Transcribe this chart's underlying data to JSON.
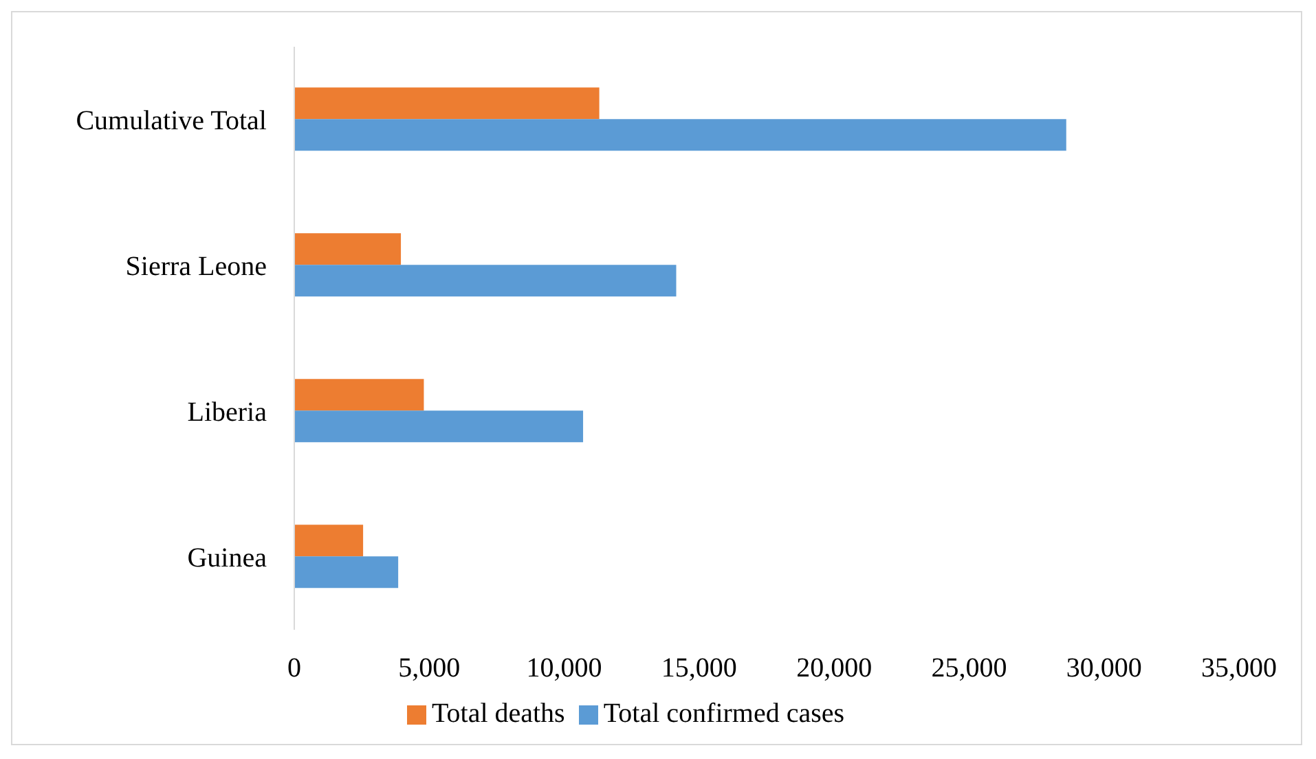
{
  "chart_data": {
    "type": "bar",
    "orientation": "horizontal",
    "categories": [
      "Cumulative Total",
      "Sierra Leone",
      "Liberia",
      "Guinea"
    ],
    "series": [
      {
        "name": "Total deaths",
        "color": "#ed7d31",
        "values": [
          11300,
          3950,
          4800,
          2550
        ]
      },
      {
        "name": "Total confirmed cases",
        "color": "#5b9bd5",
        "values": [
          28600,
          14150,
          10700,
          3850
        ]
      }
    ],
    "xlim": [
      0,
      35000
    ],
    "xticks": [
      0,
      {
        "value": 5000,
        "label": "5,000"
      },
      {
        "value": 10000,
        "label": "10,000"
      },
      {
        "value": 15000,
        "label": "15,000"
      },
      {
        "value": 20000,
        "label": "20,000"
      },
      {
        "value": 25000,
        "label": "25,000"
      },
      {
        "value": 30000,
        "label": "30,000"
      },
      {
        "value": 35000,
        "label": "35,000"
      }
    ],
    "grid": false,
    "legend": "bottom"
  }
}
